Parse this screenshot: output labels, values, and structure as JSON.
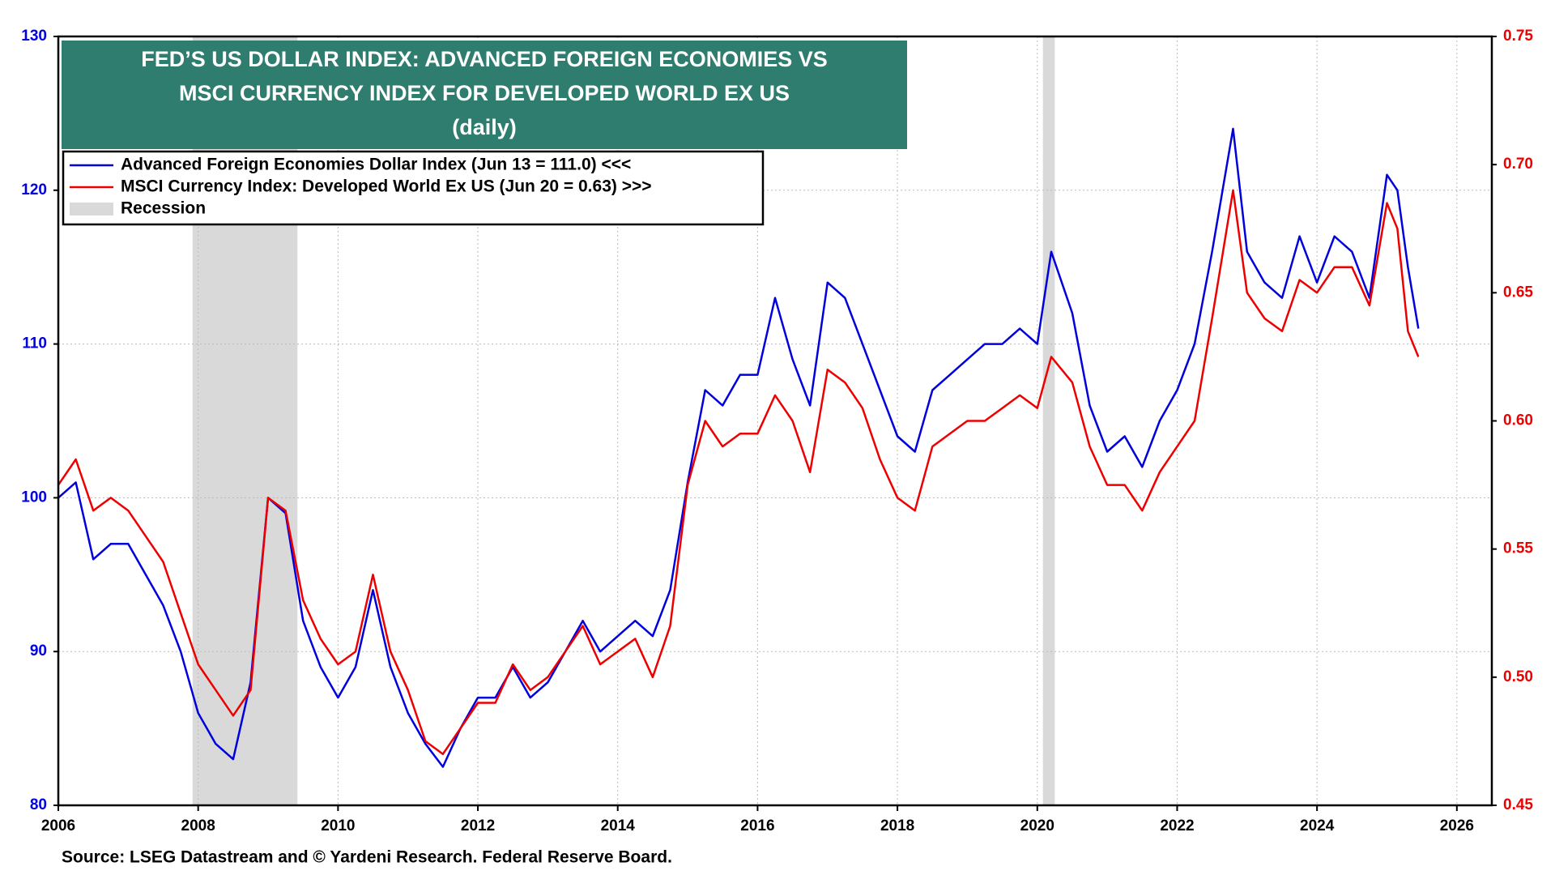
{
  "chart_data": {
    "type": "line",
    "title": [
      "FED’S US DOLLAR INDEX: ADVANCED FOREIGN ECONOMIES VS",
      "MSCI CURRENCY INDEX FOR DEVELOPED WORLD EX US"
    ],
    "subtitle": "(daily)",
    "source": "Source: LSEG Datastream and © Yardeni Research. Federal Reserve Board.",
    "x": [
      2006.0,
      2006.25,
      2006.5,
      2006.75,
      2007.0,
      2007.25,
      2007.5,
      2007.75,
      2008.0,
      2008.25,
      2008.5,
      2008.75,
      2009.0,
      2009.25,
      2009.5,
      2009.75,
      2010.0,
      2010.25,
      2010.5,
      2010.75,
      2011.0,
      2011.25,
      2011.5,
      2011.75,
      2012.0,
      2012.25,
      2012.5,
      2012.75,
      2013.0,
      2013.25,
      2013.5,
      2013.75,
      2014.0,
      2014.25,
      2014.5,
      2014.75,
      2015.0,
      2015.25,
      2015.5,
      2015.75,
      2016.0,
      2016.25,
      2016.5,
      2016.75,
      2017.0,
      2017.25,
      2017.5,
      2017.75,
      2018.0,
      2018.25,
      2018.5,
      2018.75,
      2019.0,
      2019.25,
      2019.5,
      2019.75,
      2020.0,
      2020.2,
      2020.5,
      2020.75,
      2021.0,
      2021.25,
      2021.5,
      2021.75,
      2022.0,
      2022.25,
      2022.5,
      2022.8,
      2023.0,
      2023.25,
      2023.5,
      2023.75,
      2024.0,
      2024.25,
      2024.5,
      2024.75,
      2025.0,
      2025.15,
      2025.3,
      2025.45
    ],
    "series": [
      {
        "name": "Advanced Foreign Economies Dollar Index (Jun 13 = 111.0) <<<",
        "color": "#0000dd",
        "axis": "y",
        "values": [
          100,
          101,
          96,
          97,
          97,
          95,
          93,
          90,
          86,
          84,
          83,
          88,
          100,
          99,
          92,
          89,
          87,
          89,
          94,
          89,
          86,
          84,
          82.5,
          85,
          87,
          87,
          89,
          87,
          88,
          90,
          92,
          90,
          91,
          92,
          91,
          94,
          101,
          107,
          106,
          108,
          108,
          113,
          109,
          106,
          114,
          113,
          110,
          107,
          104,
          103,
          107,
          108,
          109,
          110,
          110,
          111,
          110,
          116,
          112,
          106,
          103,
          104,
          102,
          105,
          107,
          110,
          116,
          124,
          116,
          114,
          113,
          117,
          114,
          117,
          116,
          113,
          121,
          120,
          115,
          111
        ]
      },
      {
        "name": "MSCI Currency Index: Developed World Ex US (Jun 20 = 0.63) >>>",
        "color": "#ee0000",
        "axis": "y2",
        "values": [
          0.575,
          0.585,
          0.565,
          0.57,
          0.565,
          0.555,
          0.545,
          0.525,
          0.505,
          0.495,
          0.485,
          0.495,
          0.57,
          0.565,
          0.53,
          0.515,
          0.505,
          0.51,
          0.54,
          0.51,
          0.495,
          0.475,
          0.47,
          0.48,
          0.49,
          0.49,
          0.505,
          0.495,
          0.5,
          0.51,
          0.52,
          0.505,
          0.51,
          0.515,
          0.5,
          0.52,
          0.575,
          0.6,
          0.59,
          0.595,
          0.595,
          0.61,
          0.6,
          0.58,
          0.62,
          0.615,
          0.605,
          0.585,
          0.57,
          0.565,
          0.59,
          0.595,
          0.6,
          0.6,
          0.605,
          0.61,
          0.605,
          0.625,
          0.615,
          0.59,
          0.575,
          0.575,
          0.565,
          0.58,
          0.59,
          0.6,
          0.64,
          0.69,
          0.65,
          0.64,
          0.635,
          0.655,
          0.65,
          0.66,
          0.66,
          0.645,
          0.685,
          0.675,
          0.635,
          0.625
        ]
      }
    ],
    "recession_label": "Recession",
    "recession_color": "#d9d9d9",
    "recessions": [
      [
        2007.92,
        2009.42
      ],
      [
        2020.08,
        2020.25
      ]
    ],
    "xlim": [
      2006,
      2026.5
    ],
    "xticks": [
      2006,
      2008,
      2010,
      2012,
      2014,
      2016,
      2018,
      2020,
      2022,
      2024,
      2026
    ],
    "ylim": [
      80,
      130
    ],
    "yticks": [
      80,
      90,
      100,
      110,
      120,
      130
    ],
    "y2lim": [
      0.45,
      0.75
    ],
    "y2ticks": [
      0.45,
      {
        "value": 0.5,
        "label": "0.50"
      },
      0.55,
      {
        "value": 0.6,
        "label": "0.60"
      },
      0.65,
      {
        "value": 0.7,
        "label": "0.70"
      },
      0.75
    ],
    "grid": true
  }
}
